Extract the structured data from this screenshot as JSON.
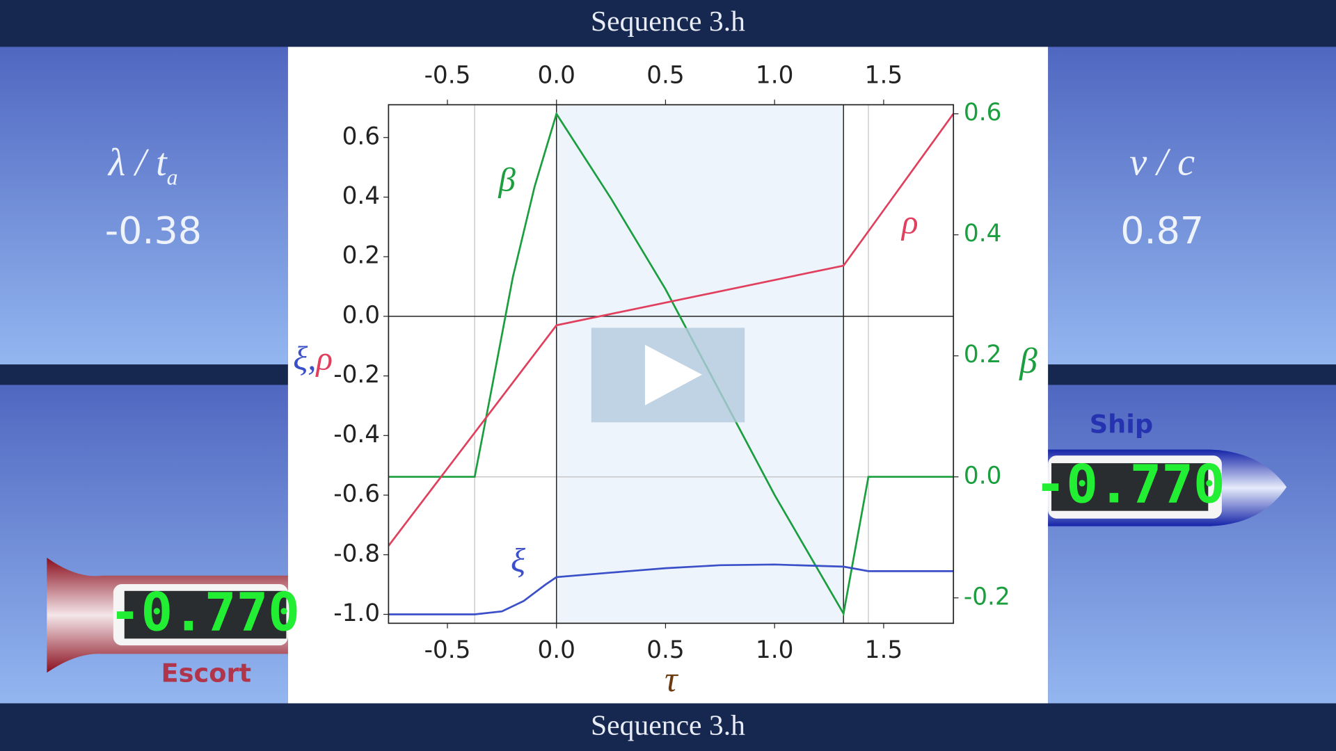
{
  "header": {
    "title": "Sequence 3.h"
  },
  "footer": {
    "title": "Sequence 3.h"
  },
  "left_panel": {
    "label": "λ / t",
    "label_sub": "a",
    "value": "-0.38"
  },
  "right_panel": {
    "label": "v / c",
    "value": "0.87"
  },
  "escort": {
    "name": "Escort",
    "counter": "-0.770"
  },
  "ship": {
    "name": "Ship",
    "counter": "-0.770"
  },
  "chart_data": {
    "type": "line",
    "xlabel": "τ",
    "ylabel": [
      "ξ,",
      "ρ"
    ],
    "y2label": "β",
    "xlim": [
      -0.77,
      1.82
    ],
    "ylim": [
      -1.03,
      0.71
    ],
    "y2lim": [
      -0.242,
      0.615
    ],
    "xticks": [
      -0.5,
      {
        "value": 0,
        "label": "0.0"
      },
      0.5,
      {
        "value": 1,
        "label": "1.0"
      },
      1.5
    ],
    "yticks": [
      {
        "value": -1,
        "label": "-1.0"
      },
      -0.8,
      -0.6,
      -0.4,
      -0.2,
      {
        "value": 0,
        "label": "0.0"
      },
      0.2,
      0.4,
      0.6
    ],
    "y2ticks": [
      -0.2,
      {
        "value": 0,
        "label": "0.0"
      },
      0.2,
      0.4,
      0.6
    ],
    "shaded_xrange": [
      0,
      1.316
    ],
    "vlines": [
      0,
      1.316
    ],
    "gray_vlines": [
      -0.375,
      1.43
    ],
    "series": [
      {
        "name": "β",
        "color": "#1a9e3e",
        "axis": "y2",
        "x": [
          -0.77,
          -0.375,
          -0.3,
          -0.2,
          -0.1,
          0,
          0.25,
          0.5,
          0.75,
          1.0,
          1.316,
          1.43,
          1.82
        ],
        "values": [
          0,
          0,
          0.14,
          0.33,
          0.48,
          0.6,
          0.46,
          0.31,
          0.14,
          -0.03,
          -0.226,
          0,
          0
        ]
      },
      {
        "name": "ρ",
        "color": "#e0405e",
        "x": [
          -0.77,
          0,
          1.316,
          1.82
        ],
        "values": [
          -0.77,
          -0.03,
          0.17,
          0.68
        ]
      },
      {
        "name": "ξ",
        "color": "#3a4fc8",
        "x": [
          -0.77,
          -0.375,
          -0.25,
          -0.15,
          -0.05,
          0,
          0.25,
          0.5,
          0.75,
          1.0,
          1.316,
          1.43,
          1.82
        ],
        "values": [
          -1,
          -1,
          -0.99,
          -0.955,
          -0.9,
          -0.875,
          -0.86,
          -0.845,
          -0.835,
          -0.833,
          -0.84,
          -0.855,
          -0.855
        ]
      }
    ]
  }
}
